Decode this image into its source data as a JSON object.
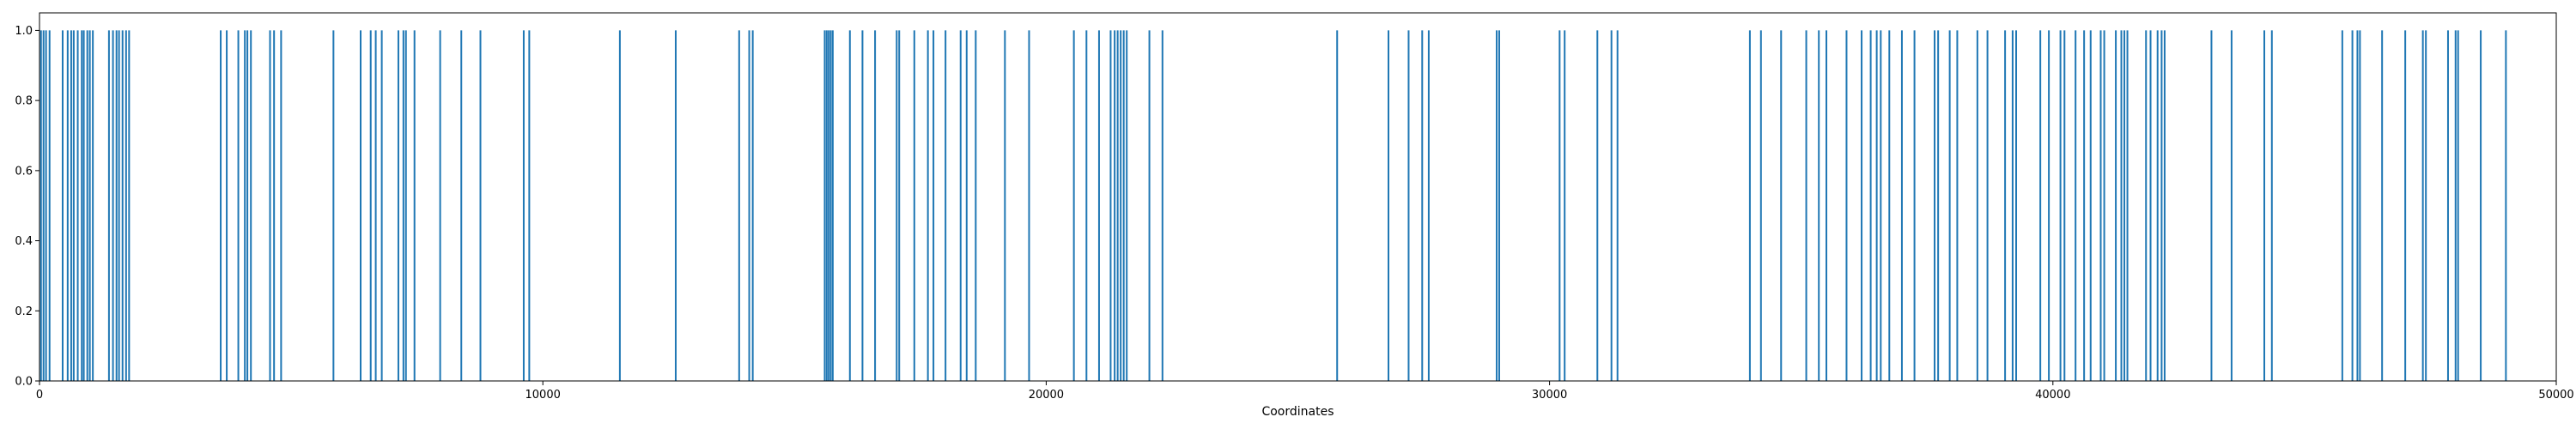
{
  "chart_data": {
    "type": "event_plot",
    "xlabel": "Coordinates",
    "ylabel": "",
    "xlim": [
      0,
      50000
    ],
    "ylim": [
      0,
      1.05
    ],
    "x_ticks": [
      0,
      10000,
      20000,
      30000,
      40000,
      50000
    ],
    "x_tick_labels": [
      "0",
      "10000",
      "20000",
      "30000",
      "40000",
      "50000"
    ],
    "y_ticks": [
      0.0,
      0.2,
      0.4,
      0.6,
      0.8,
      1.0
    ],
    "y_tick_labels": [
      "0.0",
      "0.2",
      "0.4",
      "0.6",
      "0.8",
      "1.0"
    ],
    "grid": false,
    "line_value": 1.0,
    "color": "#1f77b4",
    "positions": [
      30,
      80,
      130,
      200,
      460,
      560,
      630,
      680,
      760,
      840,
      880,
      950,
      1000,
      1060,
      1380,
      1460,
      1530,
      1580,
      1650,
      1720,
      1780,
      3600,
      3720,
      3950,
      4080,
      4130,
      4200,
      4580,
      4660,
      4800,
      5840,
      6380,
      6580,
      6680,
      6800,
      7130,
      7230,
      7280,
      7450,
      7960,
      8380,
      8760,
      9620,
      9730,
      11530,
      12640,
      13900,
      14100,
      14170,
      15600,
      15640,
      15680,
      15720,
      15760,
      16100,
      16350,
      16600,
      17030,
      17080,
      17380,
      17650,
      17760,
      18000,
      18300,
      18420,
      18600,
      19180,
      19660,
      20550,
      20800,
      21050,
      21280,
      21360,
      21420,
      21480,
      21540,
      21600,
      22050,
      22310,
      25780,
      26800,
      27200,
      27470,
      27600,
      28950,
      29000,
      30200,
      30300,
      30950,
      31230,
      31350,
      33980,
      34200,
      34600,
      35100,
      35350,
      35500,
      35900,
      36200,
      36380,
      36500,
      36580,
      36750,
      37000,
      37250,
      37650,
      37720,
      37950,
      38100,
      38500,
      38700,
      39050,
      39200,
      39270,
      39750,
      39920,
      40150,
      40230,
      40450,
      40620,
      40750,
      40950,
      41020,
      41250,
      41360,
      41420,
      41480,
      41850,
      41940,
      42080,
      42160,
      42220,
      43150,
      43550,
      44200,
      44350,
      45750,
      45950,
      46050,
      46100,
      46540,
      47000,
      47350,
      47410,
      47850,
      48000,
      48050,
      48500,
      49000
    ]
  }
}
